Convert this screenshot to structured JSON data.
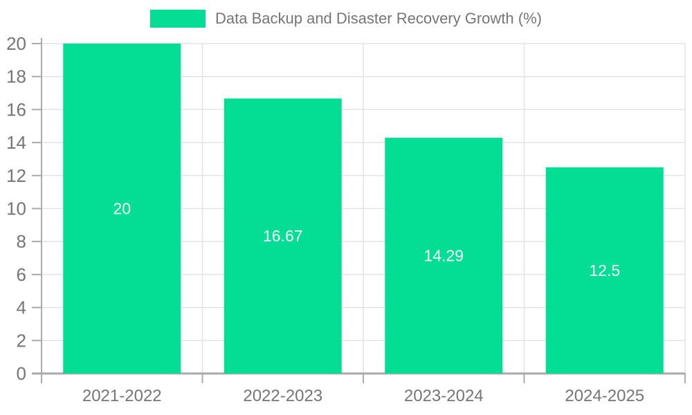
{
  "chart_data": {
    "type": "bar",
    "title": "Data Backup and Disaster Recovery Growth (%)",
    "legend": {
      "label": "Data Backup and Disaster Recovery Growth (%)",
      "position": "top-center"
    },
    "categories": [
      "2021-2022",
      "2022-2023",
      "2023-2024",
      "2024-2025"
    ],
    "series": [
      {
        "name": "Data Backup and Disaster Recovery Growth (%)",
        "values": [
          20,
          16.67,
          14.29,
          12.5
        ],
        "value_labels": [
          "20",
          "16.67",
          "14.29",
          "12.5"
        ],
        "color": "#03DE94"
      }
    ],
    "xlabel": "",
    "ylabel": "",
    "ylim": [
      0,
      20
    ],
    "ytick_step": 2,
    "ytick_labels": [
      "0",
      "2",
      "4",
      "6",
      "8",
      "10",
      "12",
      "14",
      "16",
      "18",
      "20"
    ],
    "grid": true,
    "style": {
      "bar_color": "#03DE94",
      "bar_label_color": "#ffffff",
      "axis_color": "#aaaaaa",
      "grid_color": "#e3e3e3",
      "tick_label_color": "#757575",
      "title_color": "#757575",
      "background": "#ffffff"
    }
  }
}
